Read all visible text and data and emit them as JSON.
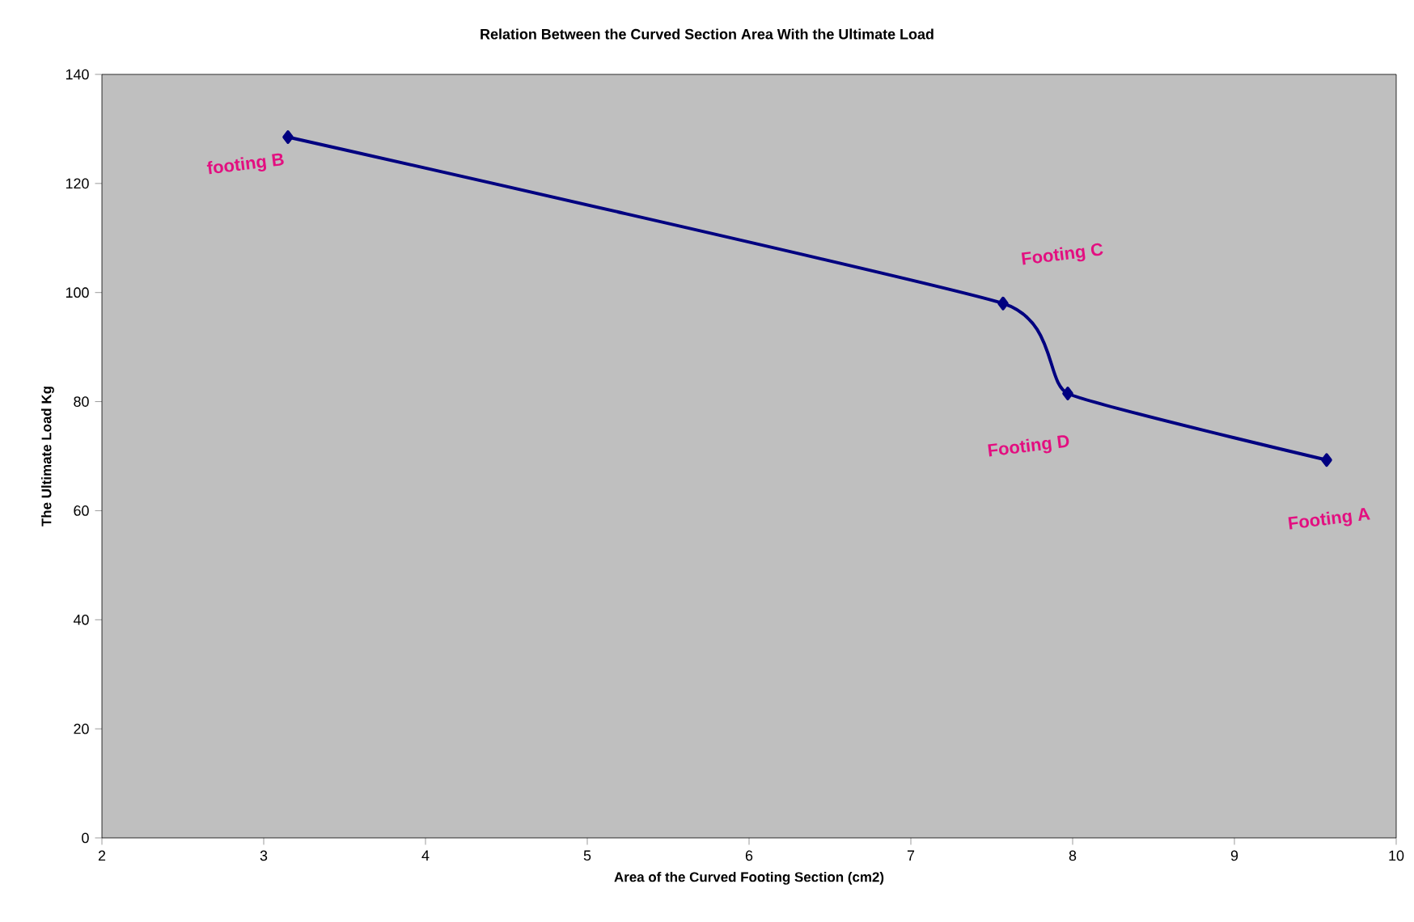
{
  "chart_data": {
    "type": "line",
    "title": "Relation Between the Curved Section Area With the Ultimate Load",
    "xlabel": "Area of the Curved Footing Section (cm2)",
    "ylabel": "The Ultimate Load Kg",
    "series": [
      {
        "color": "#000080",
        "x": [
          3.15,
          7.57,
          7.97,
          9.57
        ],
        "values": [
          128.5,
          98,
          81.5,
          69.3
        ]
      }
    ],
    "xlim": [
      2,
      10
    ],
    "xticks": [
      2,
      3,
      4,
      5,
      6,
      7,
      8,
      9,
      10
    ],
    "ylim": [
      0,
      140
    ],
    "yticks": [
      0,
      20,
      40,
      60,
      80,
      100,
      120,
      140
    ],
    "marker": "diamond",
    "line_style": "solid",
    "annotations": [
      {
        "text": "footing B",
        "x": 3.15,
        "y": 128.5
      },
      {
        "text": "Footing C",
        "x": 7.57,
        "y": 98
      },
      {
        "text": "Footing D",
        "x": 7.97,
        "y": 81.5
      },
      {
        "text": "Footing A",
        "x": 9.57,
        "y": 69.3
      }
    ]
  }
}
